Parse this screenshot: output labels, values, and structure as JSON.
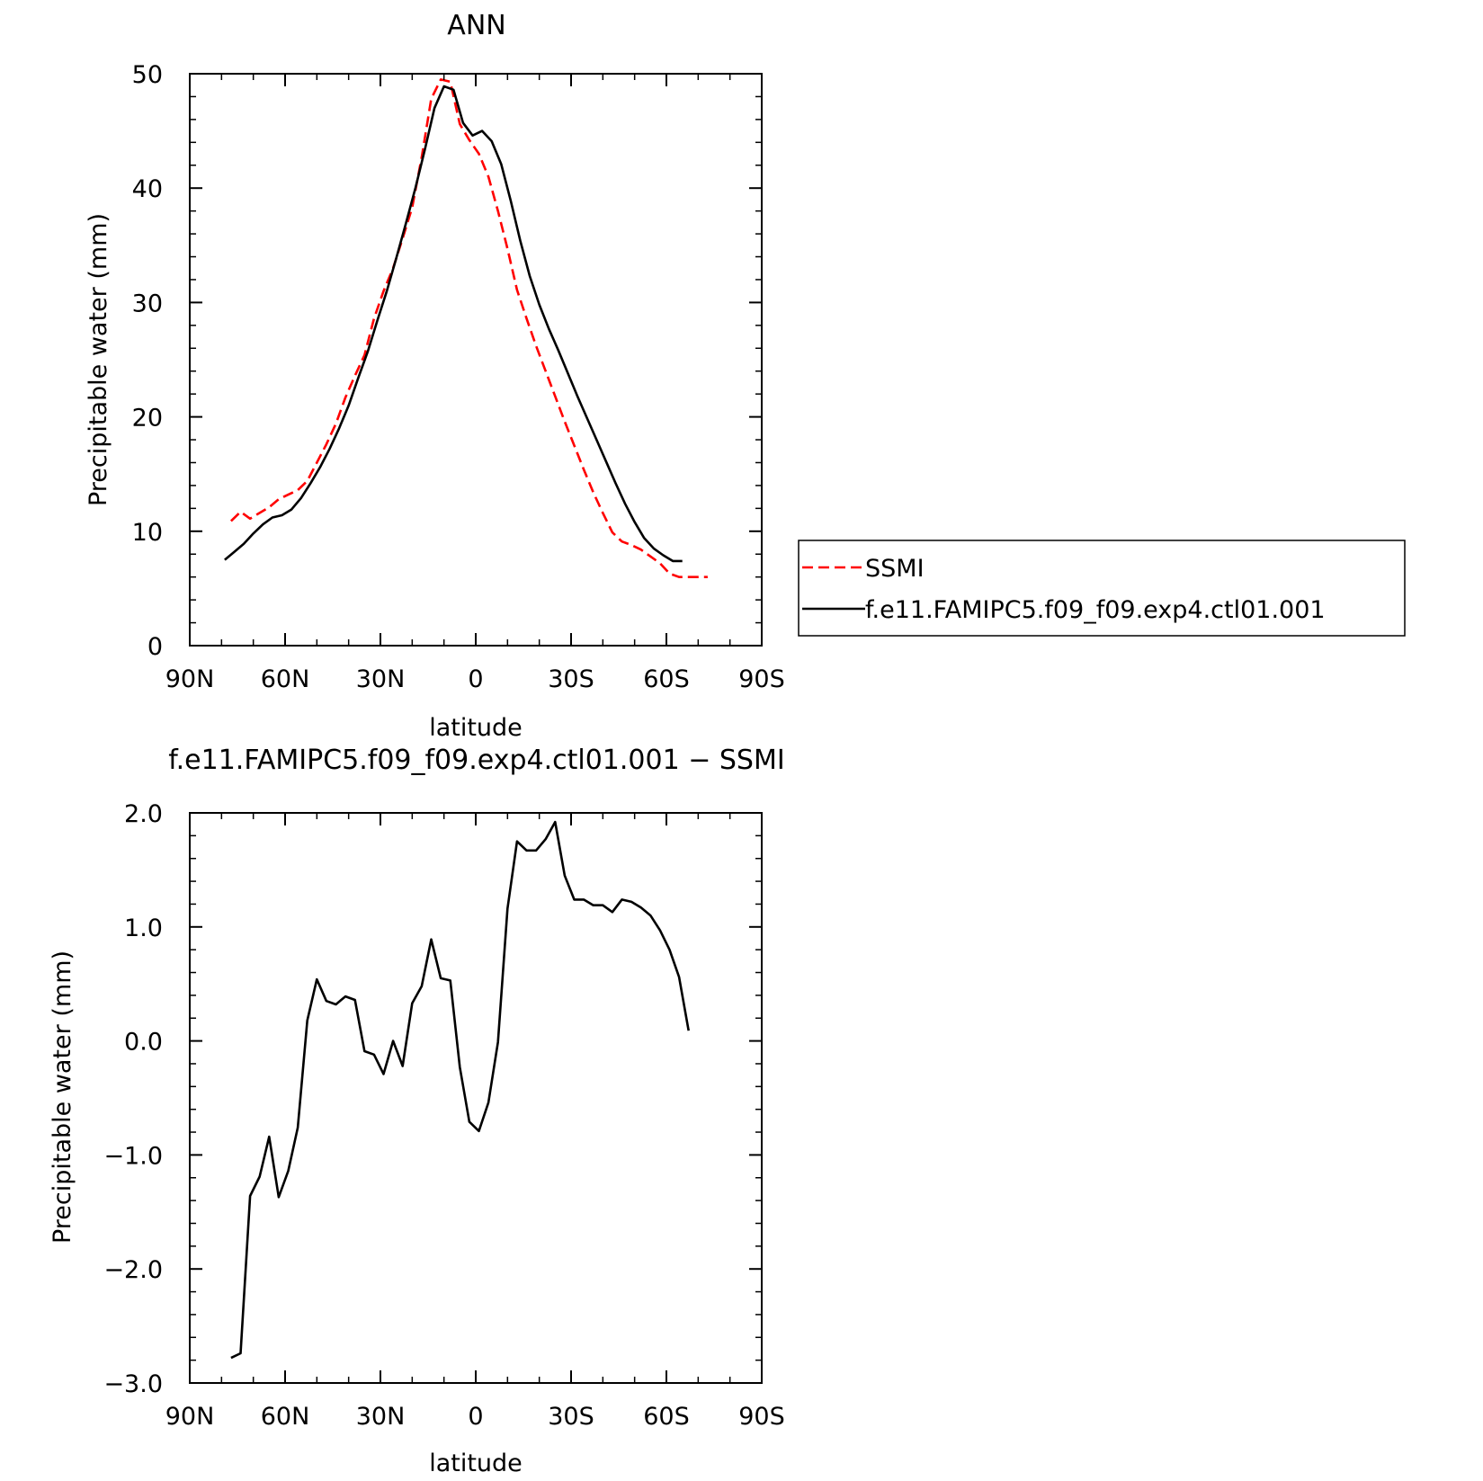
{
  "chart_data": [
    {
      "type": "line",
      "title": "ANN",
      "xlabel": "latitude",
      "ylabel": "Precipitable water (mm)",
      "xlim": [
        90,
        -90
      ],
      "ylim": [
        0,
        50
      ],
      "x_ticks": [
        {
          "value": 90,
          "label": "90N"
        },
        {
          "value": 60,
          "label": "60N"
        },
        {
          "value": 30,
          "label": "30N"
        },
        {
          "value": 0,
          "label": "0"
        },
        {
          "value": -30,
          "label": "30S"
        },
        {
          "value": -60,
          "label": "60S"
        },
        {
          "value": -90,
          "label": "90S"
        }
      ],
      "y_ticks": [
        {
          "value": 0,
          "label": "0"
        },
        {
          "value": 10,
          "label": "10"
        },
        {
          "value": 20,
          "label": "20"
        },
        {
          "value": 30,
          "label": "30"
        },
        {
          "value": 40,
          "label": "40"
        },
        {
          "value": 50,
          "label": "50"
        }
      ],
      "legend_position": "right",
      "series": [
        {
          "name": "SSMI",
          "color": "#ff0000",
          "style": "dashed",
          "x": [
            77,
            74,
            71,
            68,
            65,
            62,
            59,
            56,
            53,
            50,
            47,
            44,
            41,
            38,
            35,
            32,
            29,
            26,
            23,
            20,
            17,
            14,
            11,
            8,
            5,
            2,
            -1,
            -4,
            -7,
            -10,
            -13,
            -16,
            -19,
            -22,
            -25,
            -28,
            -31,
            -34,
            -37,
            -40,
            -43,
            -46,
            -49,
            -52,
            -55,
            -58,
            -61,
            -64,
            -67,
            -70,
            -73
          ],
          "y": [
            10.9,
            11.7,
            11.1,
            11.6,
            12.1,
            12.8,
            13.2,
            13.6,
            14.4,
            16.0,
            17.6,
            19.4,
            21.7,
            23.6,
            25.4,
            28.6,
            31.0,
            33.0,
            35.6,
            38.3,
            42.7,
            47.8,
            49.5,
            49.3,
            45.6,
            44.2,
            43.0,
            41.0,
            38.0,
            34.7,
            31.1,
            28.6,
            26.2,
            24.0,
            21.8,
            19.6,
            17.5,
            15.4,
            13.4,
            11.6,
            9.9,
            9.1,
            8.8,
            8.4,
            7.8,
            7.2,
            6.3,
            6.0,
            6.0,
            6.0,
            6.0
          ]
        },
        {
          "name": "f.e11.FAMIPC5.f09_f09.exp4.ctl01.001",
          "color": "#000000",
          "style": "solid",
          "x": [
            79,
            76,
            73,
            70,
            67,
            64,
            61,
            58,
            55,
            52,
            49,
            46,
            43,
            40,
            37,
            34,
            31,
            28,
            25,
            22,
            19,
            16,
            13,
            10,
            7,
            4,
            1,
            -2,
            -5,
            -8,
            -11,
            -14,
            -17,
            -20,
            -23,
            -26,
            -29,
            -32,
            -35,
            -38,
            -41,
            -44,
            -47,
            -50,
            -53,
            -56,
            -59,
            -62,
            -65
          ],
          "y": [
            7.5,
            8.2,
            8.9,
            9.8,
            10.6,
            11.2,
            11.4,
            11.9,
            12.9,
            14.2,
            15.6,
            17.2,
            19.0,
            21.0,
            23.4,
            25.7,
            28.4,
            31.0,
            33.9,
            36.9,
            40.0,
            43.4,
            47.0,
            48.9,
            48.6,
            45.7,
            44.6,
            45.0,
            44.1,
            42.1,
            38.9,
            35.4,
            32.3,
            29.8,
            27.7,
            25.8,
            23.8,
            21.8,
            19.9,
            18.0,
            16.1,
            14.2,
            12.4,
            10.8,
            9.4,
            8.5,
            7.9,
            7.4,
            7.4
          ]
        }
      ]
    },
    {
      "type": "line",
      "title": "f.e11.FAMIPC5.f09_f09.exp4.ctl01.001 − SSMI",
      "xlabel": "latitude",
      "ylabel": "Precipitable water (mm)",
      "xlim": [
        90,
        -90
      ],
      "ylim": [
        -3.0,
        2.0
      ],
      "x_ticks": [
        {
          "value": 90,
          "label": "90N"
        },
        {
          "value": 60,
          "label": "60N"
        },
        {
          "value": 30,
          "label": "30N"
        },
        {
          "value": 0,
          "label": "0"
        },
        {
          "value": -30,
          "label": "30S"
        },
        {
          "value": -60,
          "label": "60S"
        },
        {
          "value": -90,
          "label": "90S"
        }
      ],
      "y_ticks": [
        {
          "value": 2.0,
          "label": "2.0"
        },
        {
          "value": 1.0,
          "label": "1.0"
        },
        {
          "value": 0.0,
          "label": "0.0"
        },
        {
          "value": -1.0,
          "label": "−1.0"
        },
        {
          "value": -2.0,
          "label": "−2.0"
        },
        {
          "value": -3.0,
          "label": "−3.0"
        }
      ],
      "series": [
        {
          "color": "#000000",
          "style": "solid",
          "x": [
            77,
            74,
            71,
            68,
            65,
            62,
            59,
            56,
            53,
            50,
            47,
            44,
            41,
            38,
            35,
            32,
            29,
            26,
            23,
            20,
            17,
            14,
            11,
            8,
            5,
            2,
            -1,
            -4,
            -7,
            -10,
            -13,
            -16,
            -19,
            -22,
            -25,
            -28,
            -31,
            -34,
            -37,
            -40,
            -43,
            -46,
            -49,
            -52,
            -55,
            -58,
            -61,
            -64,
            -67
          ],
          "y": [
            -2.78,
            -2.74,
            -1.36,
            -1.19,
            -0.84,
            -1.37,
            -1.14,
            -0.76,
            0.18,
            0.54,
            0.35,
            0.32,
            0.39,
            0.36,
            -0.09,
            -0.12,
            -0.29,
            0.0,
            -0.22,
            0.33,
            0.48,
            0.89,
            0.55,
            0.53,
            -0.23,
            -0.71,
            -0.79,
            -0.54,
            -0.01,
            1.16,
            1.75,
            1.67,
            1.67,
            1.77,
            1.92,
            1.45,
            1.24,
            1.24,
            1.19,
            1.19,
            1.13,
            1.24,
            1.22,
            1.17,
            1.1,
            0.97,
            0.8,
            0.56,
            0.09
          ]
        }
      ]
    }
  ],
  "legend": {
    "entries": [
      "SSMI",
      "f.e11.FAMIPC5.f09_f09.exp4.ctl01.001"
    ]
  }
}
